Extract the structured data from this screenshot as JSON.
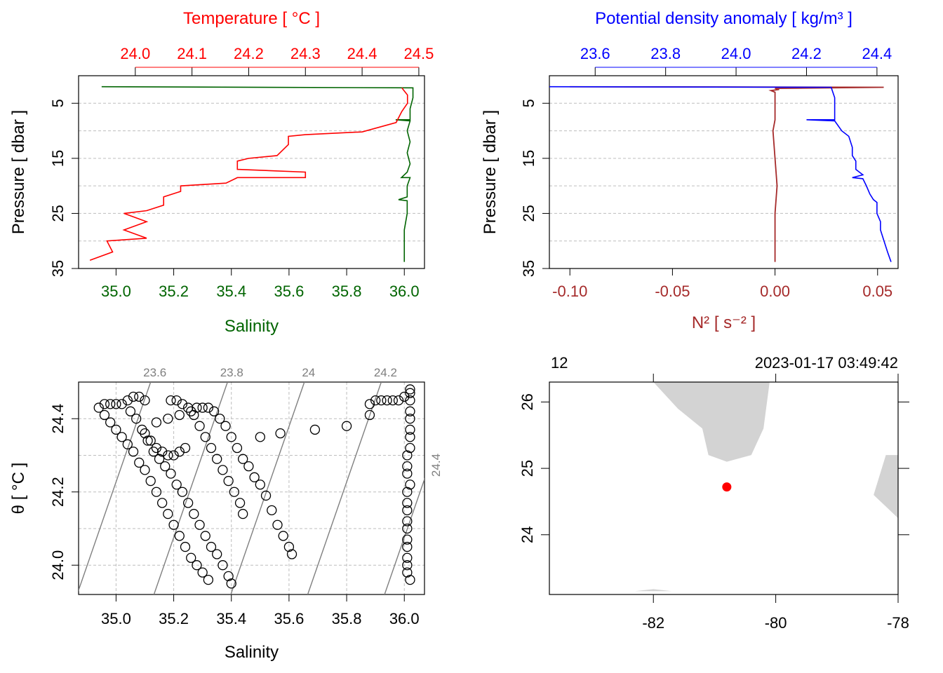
{
  "chart_data": [
    {
      "type": "line",
      "panel": "profile-TS",
      "top_axis_label": "Temperature [ °C ]",
      "bottom_axis_label": "Salinity",
      "left_axis_label": "Pressure [ dbar ]",
      "temperature_ticks": [
        "24.0",
        "24.1",
        "24.2",
        "24.3",
        "24.4",
        "24.5"
      ],
      "salinity_ticks": [
        "35.0",
        "35.2",
        "35.4",
        "35.6",
        "35.8",
        "36.0"
      ],
      "pressure_ticks": [
        "5",
        "15",
        "25",
        "35"
      ],
      "xlim_temperature": [
        23.9,
        24.51
      ],
      "xlim_salinity": [
        34.87,
        36.07
      ],
      "ylim_pressure": [
        35,
        0
      ],
      "colors": {
        "temperature": "#ff0000",
        "salinity": "#006400"
      },
      "series": [
        {
          "name": "Temperature",
          "points": [
            [
              24.47,
              2.2
            ],
            [
              24.48,
              3.5
            ],
            [
              24.48,
              5.0
            ],
            [
              24.47,
              6.5
            ],
            [
              24.46,
              8.5
            ],
            [
              24.4,
              10.2
            ],
            [
              24.3,
              10.7
            ],
            [
              24.27,
              11.0
            ],
            [
              24.27,
              12.5
            ],
            [
              24.25,
              14.5
            ],
            [
              24.2,
              15.0
            ],
            [
              24.18,
              15.5
            ],
            [
              24.18,
              17.0
            ],
            [
              24.3,
              17.5
            ],
            [
              24.3,
              18.5
            ],
            [
              24.18,
              18.5
            ],
            [
              24.16,
              19.5
            ],
            [
              24.08,
              20.0
            ],
            [
              24.08,
              21.0
            ],
            [
              24.05,
              22.0
            ],
            [
              24.05,
              23.5
            ],
            [
              24.02,
              24.5
            ],
            [
              23.98,
              25.0
            ],
            [
              24.02,
              26.5
            ],
            [
              23.98,
              28.0
            ],
            [
              24.02,
              29.5
            ],
            [
              23.95,
              30.0
            ],
            [
              23.96,
              32.0
            ],
            [
              23.92,
              33.5
            ]
          ]
        },
        {
          "name": "Salinity",
          "points": [
            [
              34.95,
              2.0
            ],
            [
              36.03,
              2.2
            ],
            [
              36.03,
              4.0
            ],
            [
              36.02,
              6.0
            ],
            [
              36.02,
              8.0
            ],
            [
              35.97,
              8.0
            ],
            [
              36.02,
              8.2
            ],
            [
              36.01,
              10.0
            ],
            [
              36.02,
              12.0
            ],
            [
              36.01,
              14.0
            ],
            [
              36.02,
              16.0
            ],
            [
              36.01,
              17.5
            ],
            [
              35.99,
              18.5
            ],
            [
              36.02,
              18.5
            ],
            [
              36.01,
              20.0
            ],
            [
              36.01,
              22.0
            ],
            [
              35.98,
              22.5
            ],
            [
              36.01,
              22.7
            ],
            [
              36.01,
              25.0
            ],
            [
              36.0,
              28.0
            ],
            [
              36.0,
              31.0
            ],
            [
              36.0,
              33.8
            ]
          ]
        }
      ]
    },
    {
      "type": "line",
      "panel": "profile-density-N2",
      "top_axis_label": "Potential density anomaly [ kg/m³ ]",
      "bottom_axis_label": "N² [ s⁻² ]",
      "left_axis_label": "Pressure [ dbar ]",
      "density_ticks": [
        "23.6",
        "23.8",
        "24.0",
        "24.2",
        "24.4"
      ],
      "n2_ticks": [
        "-0.10",
        "-0.05",
        "0.00",
        "0.05"
      ],
      "pressure_ticks": [
        "5",
        "15",
        "25",
        "35"
      ],
      "xlim_density": [
        23.47,
        24.46
      ],
      "xlim_n2": [
        -0.11,
        0.06
      ],
      "ylim_pressure": [
        35,
        0
      ],
      "colors": {
        "density": "#0000ff",
        "n2": "#a52a2a"
      },
      "series": [
        {
          "name": "Potential density anomaly",
          "points": [
            [
              23.47,
              2.0
            ],
            [
              24.27,
              2.1
            ],
            [
              24.28,
              4.0
            ],
            [
              24.28,
              6.0
            ],
            [
              24.28,
              8.0
            ],
            [
              24.2,
              8.0
            ],
            [
              24.28,
              8.2
            ],
            [
              24.3,
              10.0
            ],
            [
              24.32,
              11.0
            ],
            [
              24.33,
              13.0
            ],
            [
              24.33,
              14.5
            ],
            [
              24.34,
              15.5
            ],
            [
              24.34,
              17.0
            ],
            [
              24.36,
              18.0
            ],
            [
              24.33,
              18.5
            ],
            [
              24.36,
              18.7
            ],
            [
              24.37,
              20.0
            ],
            [
              24.38,
              21.5
            ],
            [
              24.39,
              22.5
            ],
            [
              24.4,
              23.0
            ],
            [
              24.4,
              25.0
            ],
            [
              24.41,
              26.5
            ],
            [
              24.41,
              28.0
            ],
            [
              24.42,
              30.0
            ],
            [
              24.43,
              32.0
            ],
            [
              24.44,
              33.8
            ]
          ]
        },
        {
          "name": "N²",
          "points": [
            [
              -0.1,
              2.0
            ],
            [
              0.053,
              2.1
            ],
            [
              0.0,
              2.3
            ],
            [
              0.002,
              2.5
            ],
            [
              -0.002,
              2.7
            ],
            [
              0.0,
              3.0
            ],
            [
              0.0,
              8.0
            ],
            [
              -0.001,
              10.0
            ],
            [
              0.0,
              15.0
            ],
            [
              0.001,
              20.0
            ],
            [
              0.0,
              25.0
            ],
            [
              0.0,
              30.0
            ],
            [
              0.0,
              33.8
            ]
          ]
        }
      ]
    },
    {
      "type": "scatter",
      "panel": "TS-diagram",
      "xlabel": "Salinity",
      "ylabel": "θ [ °C ]",
      "xticks": [
        "35.0",
        "35.2",
        "35.4",
        "35.6",
        "35.8",
        "36.0"
      ],
      "yticks": [
        "24.0",
        "24.2",
        "24.4"
      ],
      "xlim": [
        34.87,
        36.07
      ],
      "ylim": [
        23.92,
        24.5
      ],
      "isopycnal_labels": [
        "23.6",
        "23.8",
        "24",
        "24.2",
        "24.4"
      ],
      "isopycnals": [
        23.6,
        23.8,
        24.0,
        24.2,
        24.4
      ],
      "points": [
        [
          34.94,
          24.43
        ],
        [
          34.96,
          24.44
        ],
        [
          34.98,
          24.44
        ],
        [
          35.0,
          24.44
        ],
        [
          35.02,
          24.44
        ],
        [
          35.04,
          24.45
        ],
        [
          35.06,
          24.46
        ],
        [
          35.08,
          24.46
        ],
        [
          35.1,
          24.45
        ],
        [
          34.96,
          24.41
        ],
        [
          34.98,
          24.39
        ],
        [
          35.0,
          24.37
        ],
        [
          35.02,
          24.35
        ],
        [
          35.04,
          24.33
        ],
        [
          35.06,
          24.31
        ],
        [
          35.08,
          24.28
        ],
        [
          35.1,
          24.26
        ],
        [
          35.12,
          24.23
        ],
        [
          35.14,
          24.2
        ],
        [
          35.16,
          24.17
        ],
        [
          35.18,
          24.14
        ],
        [
          35.2,
          24.11
        ],
        [
          35.22,
          24.08
        ],
        [
          35.24,
          24.05
        ],
        [
          35.26,
          24.02
        ],
        [
          35.28,
          24.0
        ],
        [
          35.3,
          23.98
        ],
        [
          35.32,
          23.96
        ],
        [
          35.05,
          24.42
        ],
        [
          35.07,
          24.4
        ],
        [
          35.09,
          24.37
        ],
        [
          35.11,
          24.34
        ],
        [
          35.13,
          24.31
        ],
        [
          35.15,
          24.29
        ],
        [
          35.17,
          24.27
        ],
        [
          35.19,
          24.25
        ],
        [
          35.21,
          24.22
        ],
        [
          35.23,
          24.2
        ],
        [
          35.25,
          24.17
        ],
        [
          35.27,
          24.14
        ],
        [
          35.29,
          24.11
        ],
        [
          35.31,
          24.08
        ],
        [
          35.33,
          24.05
        ],
        [
          35.35,
          24.03
        ],
        [
          35.37,
          24.0
        ],
        [
          35.39,
          23.97
        ],
        [
          35.4,
          23.95
        ],
        [
          35.1,
          24.36
        ],
        [
          35.12,
          24.34
        ],
        [
          35.14,
          24.32
        ],
        [
          35.16,
          24.31
        ],
        [
          35.18,
          24.3
        ],
        [
          35.2,
          24.3
        ],
        [
          35.22,
          24.31
        ],
        [
          35.24,
          24.32
        ],
        [
          35.14,
          24.39
        ],
        [
          35.18,
          24.4
        ],
        [
          35.22,
          24.41
        ],
        [
          35.26,
          24.42
        ],
        [
          35.19,
          24.45
        ],
        [
          35.21,
          24.45
        ],
        [
          35.23,
          24.44
        ],
        [
          35.25,
          24.43
        ],
        [
          35.27,
          24.41
        ],
        [
          35.29,
          24.38
        ],
        [
          35.31,
          24.35
        ],
        [
          35.33,
          24.32
        ],
        [
          35.35,
          24.29
        ],
        [
          35.37,
          24.26
        ],
        [
          35.39,
          24.23
        ],
        [
          35.41,
          24.2
        ],
        [
          35.43,
          24.17
        ],
        [
          35.44,
          24.14
        ],
        [
          35.28,
          24.43
        ],
        [
          35.3,
          24.43
        ],
        [
          35.32,
          24.43
        ],
        [
          35.34,
          24.42
        ],
        [
          35.36,
          24.4
        ],
        [
          35.38,
          24.38
        ],
        [
          35.4,
          24.35
        ],
        [
          35.42,
          24.32
        ],
        [
          35.44,
          24.29
        ],
        [
          35.46,
          24.27
        ],
        [
          35.48,
          24.24
        ],
        [
          35.5,
          24.22
        ],
        [
          35.52,
          24.19
        ],
        [
          35.54,
          24.15
        ],
        [
          35.56,
          24.11
        ],
        [
          35.58,
          24.08
        ],
        [
          35.6,
          24.05
        ],
        [
          35.61,
          24.03
        ],
        [
          35.5,
          24.35
        ],
        [
          35.57,
          24.36
        ],
        [
          35.69,
          24.37
        ],
        [
          35.8,
          24.38
        ],
        [
          35.88,
          24.41
        ],
        [
          35.88,
          24.44
        ],
        [
          35.9,
          24.45
        ],
        [
          35.92,
          24.45
        ],
        [
          35.94,
          24.45
        ],
        [
          35.96,
          24.45
        ],
        [
          35.98,
          24.45
        ],
        [
          36.0,
          24.46
        ],
        [
          36.02,
          24.47
        ],
        [
          36.02,
          24.48
        ],
        [
          36.02,
          24.45
        ],
        [
          36.02,
          24.42
        ],
        [
          36.02,
          24.4
        ],
        [
          36.02,
          24.37
        ],
        [
          36.02,
          24.35
        ],
        [
          36.02,
          24.32
        ],
        [
          36.01,
          24.3
        ],
        [
          36.01,
          24.27
        ],
        [
          36.01,
          24.25
        ],
        [
          36.02,
          24.22
        ],
        [
          36.01,
          24.2
        ],
        [
          36.01,
          24.17
        ],
        [
          36.01,
          24.15
        ],
        [
          36.01,
          24.12
        ],
        [
          36.01,
          24.1
        ],
        [
          36.01,
          24.07
        ],
        [
          36.01,
          24.05
        ],
        [
          36.01,
          24.02
        ],
        [
          36.01,
          24.0
        ],
        [
          36.01,
          23.98
        ],
        [
          36.02,
          23.96
        ]
      ]
    },
    {
      "type": "map",
      "panel": "station-map",
      "top_left_label": "12",
      "top_right_label": "2023-01-17 03:49:42",
      "xticks": [
        "-82",
        "-80",
        "-78"
      ],
      "yticks": [
        "24",
        "25",
        "26"
      ],
      "xlim": [
        -83.7,
        -78.0
      ],
      "ylim": [
        23.1,
        26.3
      ],
      "station": {
        "lon": -80.8,
        "lat": 24.72,
        "color": "#ff0000"
      },
      "land_color": "#d3d3d3",
      "land": [
        [
          [
            -82.0,
            26.3
          ],
          [
            -81.6,
            25.9
          ],
          [
            -81.2,
            25.6
          ],
          [
            -81.1,
            25.2
          ],
          [
            -80.8,
            25.1
          ],
          [
            -80.4,
            25.2
          ],
          [
            -80.2,
            25.6
          ],
          [
            -80.1,
            26.3
          ]
        ],
        [
          [
            -78.0,
            25.2
          ],
          [
            -78.2,
            25.2
          ],
          [
            -78.4,
            24.6
          ],
          [
            -78.0,
            24.25
          ]
        ],
        [
          [
            -82.3,
            23.15
          ],
          [
            -81.7,
            23.15
          ],
          [
            -82.0,
            23.18
          ]
        ]
      ]
    }
  ]
}
